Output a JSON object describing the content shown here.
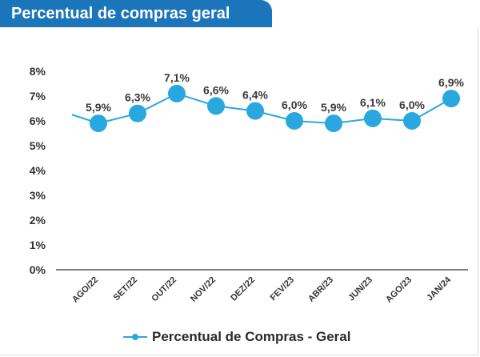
{
  "header": {
    "title": "Percentual de compras geral"
  },
  "colors": {
    "header_bg": "#1b75bb",
    "series": "#29a8e0",
    "label": "#3a3a3a",
    "axis": "#333333"
  },
  "chart_data": {
    "type": "line",
    "title": "Percentual de compras geral",
    "xlabel": "",
    "ylabel": "",
    "ylim": [
      0,
      8
    ],
    "y_ticks": [
      "0%",
      "1%",
      "2%",
      "3%",
      "4%",
      "5%",
      "6%",
      "7%",
      "8%"
    ],
    "categories": [
      "AGO/22",
      "SET/22",
      "OUT/22",
      "NOV/22",
      "DEZ/22",
      "FEV/23",
      "ABR/23",
      "JUN/23",
      "AGO/23",
      "JAN/24"
    ],
    "series": [
      {
        "name": "Percentual de Compras - Geral",
        "values": [
          5.9,
          6.3,
          7.1,
          6.6,
          6.4,
          6.0,
          5.9,
          6.1,
          6.0,
          6.9
        ],
        "labels": [
          "5,9%",
          "6,3%",
          "7,1%",
          "6,6%",
          "6,4%",
          "6,0%",
          "5,9%",
          "6,1%",
          "6,0%",
          "6,9%"
        ]
      }
    ],
    "grid": false,
    "legend_position": "bottom"
  }
}
